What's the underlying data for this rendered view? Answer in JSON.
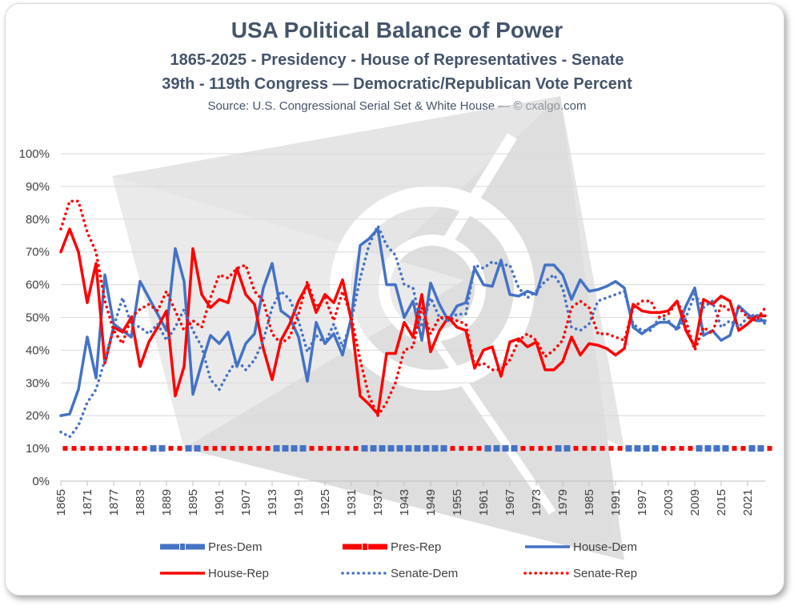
{
  "chart_data": {
    "type": "line",
    "title": "USA Political Balance of Power",
    "subtitle1": "1865-2025 - Presidency - House of Representatives - Senate",
    "subtitle2": "39th - 119th Congress — Democratic/Republican  Vote Percent",
    "source": "Source: U.S. Congressional Serial Set & White House  — © cxalgo.com",
    "xlim": [
      1865,
      2025
    ],
    "ylim": [
      0,
      100
    ],
    "y_ticks": [
      "0%",
      "10%",
      "20%",
      "30%",
      "40%",
      "50%",
      "60%",
      "70%",
      "80%",
      "90%",
      "100%"
    ],
    "x_ticks": [
      "1865",
      "1871",
      "1877",
      "1883",
      "1889",
      "1895",
      "1901",
      "1907",
      "1913",
      "1919",
      "1925",
      "1931",
      "1937",
      "1943",
      "1949",
      "1955",
      "1961",
      "1967",
      "1973",
      "1979",
      "1985",
      "1991",
      "1997",
      "2003",
      "2009",
      "2015",
      "2021"
    ],
    "grid": true,
    "legend_position": "bottom",
    "colors": {
      "dem": "#4472c4",
      "rep": "#ff0000",
      "title": "#44546a"
    },
    "series": [
      {
        "name": "House-Dem",
        "x": [
          1865,
          1867,
          1869,
          1871,
          1873,
          1875,
          1877,
          1879,
          1881,
          1883,
          1885,
          1887,
          1889,
          1891,
          1893,
          1895,
          1897,
          1899,
          1901,
          1903,
          1905,
          1907,
          1909,
          1911,
          1913,
          1915,
          1917,
          1919,
          1921,
          1923,
          1925,
          1927,
          1929,
          1931,
          1933,
          1935,
          1937,
          1939,
          1941,
          1943,
          1945,
          1947,
          1949,
          1951,
          1953,
          1955,
          1957,
          1959,
          1961,
          1963,
          1965,
          1967,
          1969,
          1971,
          1973,
          1975,
          1977,
          1979,
          1981,
          1983,
          1985,
          1987,
          1989,
          1991,
          1993,
          1995,
          1997,
          1999,
          2001,
          2003,
          2005,
          2007,
          2009,
          2011,
          2013,
          2015,
          2017,
          2019,
          2021,
          2023,
          2025
        ],
        "values": [
          20,
          20.5,
          28,
          44,
          31.5,
          63,
          48,
          46,
          44,
          61,
          56,
          51,
          46,
          71,
          61,
          26.5,
          36,
          44.5,
          42,
          45.5,
          35,
          42,
          45,
          59,
          66.5,
          52,
          50,
          44,
          30.5,
          48.5,
          42,
          45,
          38.5,
          50,
          72,
          74,
          77,
          60,
          60,
          50,
          55,
          43,
          60.5,
          54,
          49,
          53.5,
          54.5,
          65,
          60,
          59.5,
          67.5,
          57,
          56.5,
          58,
          57,
          66,
          66,
          63,
          55.5,
          61.5,
          58,
          58.5,
          59.5,
          61,
          59,
          47,
          45,
          47,
          48.5,
          48.5,
          46.5,
          53.5,
          59,
          44.5,
          46,
          43,
          44.5,
          53.5,
          51,
          49,
          49
        ]
      },
      {
        "name": "House-Rep",
        "x": [
          1865,
          1867,
          1869,
          1871,
          1873,
          1875,
          1877,
          1879,
          1881,
          1883,
          1885,
          1887,
          1889,
          1891,
          1893,
          1895,
          1897,
          1899,
          1901,
          1903,
          1905,
          1907,
          1909,
          1911,
          1913,
          1915,
          1917,
          1919,
          1921,
          1923,
          1925,
          1927,
          1929,
          1931,
          1933,
          1935,
          1937,
          1939,
          1941,
          1943,
          1945,
          1947,
          1949,
          1951,
          1953,
          1955,
          1957,
          1959,
          1961,
          1963,
          1965,
          1967,
          1969,
          1971,
          1973,
          1975,
          1977,
          1979,
          1981,
          1983,
          1985,
          1987,
          1989,
          1991,
          1993,
          1995,
          1997,
          1999,
          2001,
          2003,
          2005,
          2007,
          2009,
          2011,
          2013,
          2015,
          2017,
          2019,
          2021,
          2023,
          2025
        ],
        "values": [
          70,
          77,
          70,
          54.5,
          66.5,
          36,
          47,
          45.5,
          50,
          35,
          42.5,
          47,
          52,
          26,
          35,
          71,
          57,
          53,
          55.5,
          54.5,
          65,
          57,
          54,
          40.5,
          31,
          43,
          48,
          55,
          60,
          51.5,
          57,
          54.5,
          61.5,
          49,
          26,
          23.5,
          20.5,
          39,
          39,
          48.5,
          44,
          57,
          39.5,
          46,
          50,
          47,
          46,
          34.5,
          40,
          41,
          32,
          42.5,
          43.5,
          41,
          42.5,
          34,
          34,
          36.5,
          44,
          38.5,
          42,
          41.5,
          40.5,
          38.5,
          40.5,
          54,
          52,
          51.5,
          51.5,
          52,
          55,
          46,
          41,
          55.5,
          54,
          56.5,
          55,
          46,
          48,
          50.5,
          50.5
        ]
      },
      {
        "name": "Senate-Dem",
        "x": [
          1865,
          1867,
          1869,
          1871,
          1873,
          1875,
          1877,
          1879,
          1881,
          1883,
          1885,
          1887,
          1889,
          1891,
          1893,
          1895,
          1897,
          1899,
          1901,
          1903,
          1905,
          1907,
          1909,
          1911,
          1913,
          1915,
          1917,
          1919,
          1921,
          1923,
          1925,
          1927,
          1929,
          1931,
          1933,
          1935,
          1937,
          1939,
          1941,
          1943,
          1945,
          1947,
          1949,
          1951,
          1953,
          1955,
          1957,
          1959,
          1961,
          1963,
          1965,
          1967,
          1969,
          1971,
          1973,
          1975,
          1977,
          1979,
          1981,
          1983,
          1985,
          1987,
          1989,
          1991,
          1993,
          1995,
          1997,
          1999,
          2001,
          2003,
          2005,
          2007,
          2009,
          2011,
          2013,
          2015,
          2017,
          2019,
          2021,
          2023,
          2025
        ],
        "values": [
          15,
          13.5,
          17,
          24,
          28,
          37,
          47,
          56,
          48,
          47,
          45,
          48,
          43,
          47,
          52.5,
          46,
          41,
          31,
          28,
          33,
          37,
          34,
          37,
          43,
          53,
          58,
          55.5,
          49,
          39.5,
          44.5,
          42,
          48,
          41,
          49,
          62,
          72,
          78,
          72,
          69,
          60,
          59,
          47,
          56,
          50,
          49,
          51,
          51,
          66,
          65,
          67,
          66,
          66,
          59,
          56,
          58,
          61,
          63,
          59,
          47,
          46,
          48,
          55,
          56,
          57,
          58,
          48,
          46,
          46,
          50,
          49,
          46,
          50,
          57,
          53,
          55,
          47,
          49,
          47,
          50,
          51,
          48
        ]
      },
      {
        "name": "Senate-Rep",
        "x": [
          1865,
          1867,
          1869,
          1871,
          1873,
          1875,
          1877,
          1879,
          1881,
          1883,
          1885,
          1887,
          1889,
          1891,
          1893,
          1895,
          1897,
          1899,
          1901,
          1903,
          1905,
          1907,
          1909,
          1911,
          1913,
          1915,
          1917,
          1919,
          1921,
          1923,
          1925,
          1927,
          1929,
          1931,
          1933,
          1935,
          1937,
          1939,
          1941,
          1943,
          1945,
          1947,
          1949,
          1951,
          1953,
          1955,
          1957,
          1959,
          1961,
          1963,
          1965,
          1967,
          1969,
          1971,
          1973,
          1975,
          1977,
          1979,
          1981,
          1983,
          1985,
          1987,
          1989,
          1991,
          1993,
          1995,
          1997,
          1999,
          2001,
          2003,
          2005,
          2007,
          2009,
          2011,
          2013,
          2015,
          2017,
          2019,
          2021,
          2023,
          2025
        ],
        "values": [
          77,
          85.5,
          85.5,
          76,
          70,
          55,
          46,
          42,
          50,
          52.5,
          54,
          52,
          58,
          52,
          46,
          49,
          47,
          56,
          63,
          62,
          65,
          66,
          58,
          55,
          45,
          42,
          44,
          51,
          61,
          53,
          56,
          49,
          58,
          50,
          37,
          26,
          20,
          24,
          30,
          40,
          41,
          53,
          45,
          50,
          50,
          49,
          48,
          35,
          36,
          34,
          34,
          37,
          43,
          45,
          43,
          38,
          40,
          43,
          53,
          55,
          53,
          45,
          45,
          44,
          43,
          53,
          55,
          55,
          50,
          51,
          55,
          49,
          40,
          47,
          45,
          54,
          52,
          53,
          50,
          49,
          53
        ]
      }
    ],
    "presidency": {
      "legend": {
        "dem": "Pres-Dem",
        "rep": "Pres-Rep"
      },
      "value": 10,
      "terms": [
        {
          "start": 1865,
          "end": 1885,
          "party": "rep"
        },
        {
          "start": 1885,
          "end": 1889,
          "party": "dem"
        },
        {
          "start": 1889,
          "end": 1893,
          "party": "rep"
        },
        {
          "start": 1893,
          "end": 1897,
          "party": "dem"
        },
        {
          "start": 1897,
          "end": 1913,
          "party": "rep"
        },
        {
          "start": 1913,
          "end": 1921,
          "party": "dem"
        },
        {
          "start": 1921,
          "end": 1933,
          "party": "rep"
        },
        {
          "start": 1933,
          "end": 1953,
          "party": "dem"
        },
        {
          "start": 1953,
          "end": 1961,
          "party": "rep"
        },
        {
          "start": 1961,
          "end": 1969,
          "party": "dem"
        },
        {
          "start": 1969,
          "end": 1977,
          "party": "rep"
        },
        {
          "start": 1977,
          "end": 1981,
          "party": "dem"
        },
        {
          "start": 1981,
          "end": 1993,
          "party": "rep"
        },
        {
          "start": 1993,
          "end": 2001,
          "party": "dem"
        },
        {
          "start": 2001,
          "end": 2009,
          "party": "rep"
        },
        {
          "start": 2009,
          "end": 2017,
          "party": "dem"
        },
        {
          "start": 2017,
          "end": 2021,
          "party": "rep"
        },
        {
          "start": 2021,
          "end": 2025,
          "party": "dem"
        },
        {
          "start": 2025,
          "end": 2026,
          "party": "rep"
        }
      ]
    },
    "legend": [
      "Pres-Dem",
      "Pres-Rep",
      "House-Dem",
      "House-Rep",
      "Senate-Dem",
      "Senate-Rep"
    ]
  }
}
